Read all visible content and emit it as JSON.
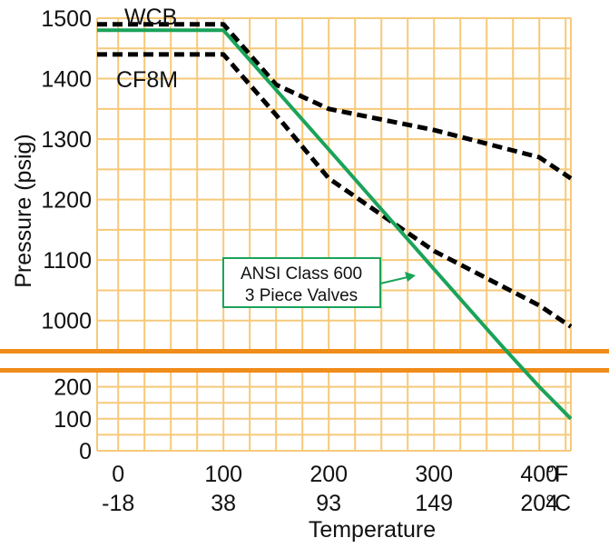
{
  "chart_data": {
    "type": "line",
    "ylabel": "Pressure (psig)",
    "xlabel": "Temperature",
    "x_unit_f": "°F",
    "x_unit_c": "°C",
    "x_ticks_f": [
      "0",
      "100",
      "200",
      "300",
      "400"
    ],
    "x_ticks_c": [
      "-18",
      "38",
      "93",
      "149",
      "204"
    ],
    "xlim_f": [
      -20,
      430
    ],
    "upper_panel": {
      "ylim": [
        950,
        1500
      ],
      "ticks": [
        "1500",
        "1400",
        "1300",
        "1200",
        "1100",
        "1000"
      ]
    },
    "lower_panel": {
      "ylim": [
        0,
        250
      ],
      "ticks": [
        "200",
        "100",
        "0"
      ]
    },
    "axis_break": true,
    "grid": true,
    "series": [
      {
        "name": "WCB",
        "style": "dashed",
        "color": "#000000",
        "x": [
          -20,
          100,
          150,
          200,
          300,
          400,
          430
        ],
        "y": [
          1490,
          1490,
          1390,
          1350,
          1315,
          1270,
          1235
        ]
      },
      {
        "name": "CF8M",
        "style": "dashed",
        "color": "#000000",
        "x": [
          -20,
          100,
          150,
          200,
          300,
          400,
          430
        ],
        "y": [
          1440,
          1440,
          1340,
          1235,
          1115,
          1025,
          990
        ]
      },
      {
        "name": "ANSI Class 600\n3 Piece Valves",
        "style": "solid",
        "color": "#1aa35a",
        "x": [
          -20,
          100,
          200,
          300,
          366,
          400,
          430
        ],
        "y": [
          1480,
          1480,
          1283,
          1085,
          955,
          200,
          100
        ]
      }
    ],
    "annotation": {
      "line1": "ANSI Class 600",
      "line2": "3 Piece Valves"
    },
    "colors": {
      "grid": "#f6c97a",
      "break_bar": "#f08c1a",
      "green": "#1aa35a"
    }
  }
}
